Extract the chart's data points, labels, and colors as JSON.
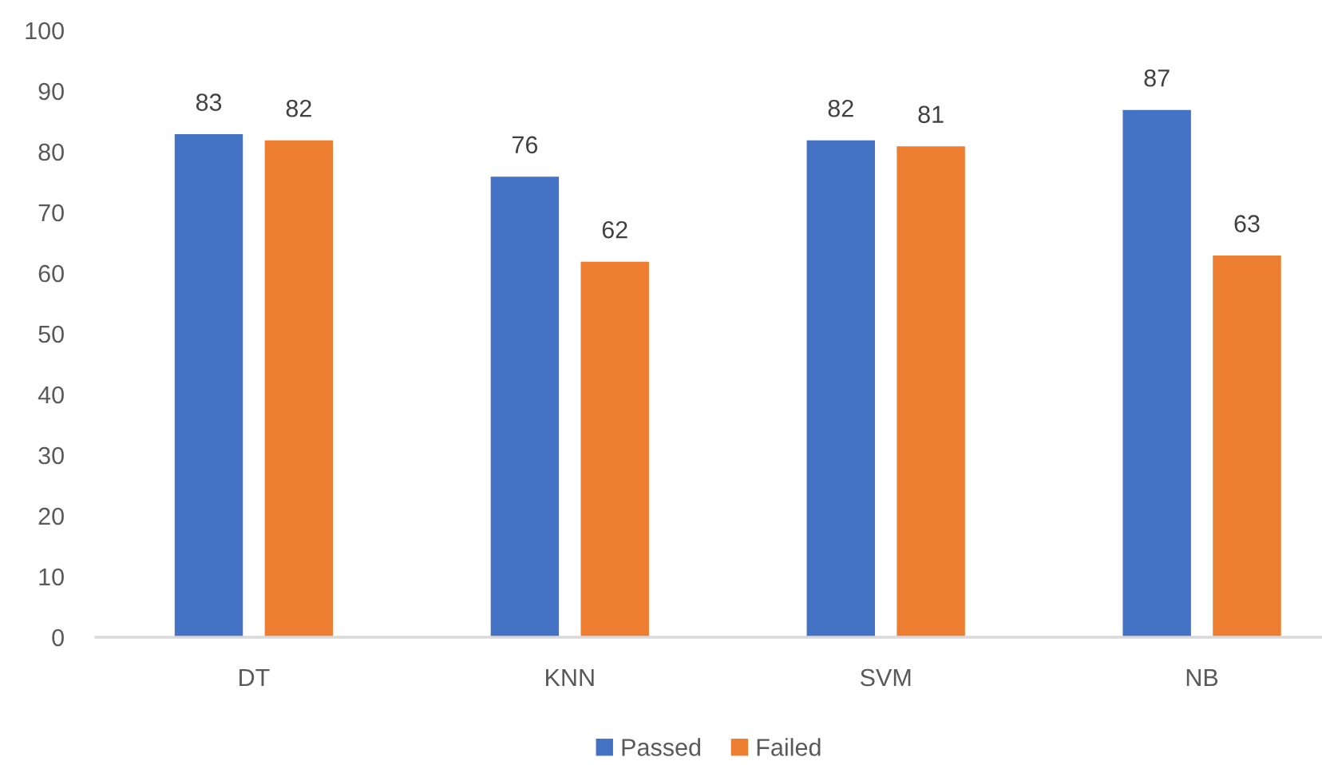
{
  "chart_data": {
    "type": "bar",
    "categories": [
      "DT",
      "KNN",
      "SVM",
      "NB"
    ],
    "series": [
      {
        "name": "Passed",
        "color": "#4472c4",
        "values": [
          83,
          76,
          82,
          87
        ]
      },
      {
        "name": "Failed",
        "color": "#ed7d31",
        "values": [
          82,
          62,
          81,
          63
        ]
      }
    ],
    "ylim": [
      0,
      100
    ],
    "yticks": [
      0,
      10,
      20,
      30,
      40,
      50,
      60,
      70,
      80,
      90,
      100
    ],
    "legend": "bottom",
    "data_labels": true
  }
}
